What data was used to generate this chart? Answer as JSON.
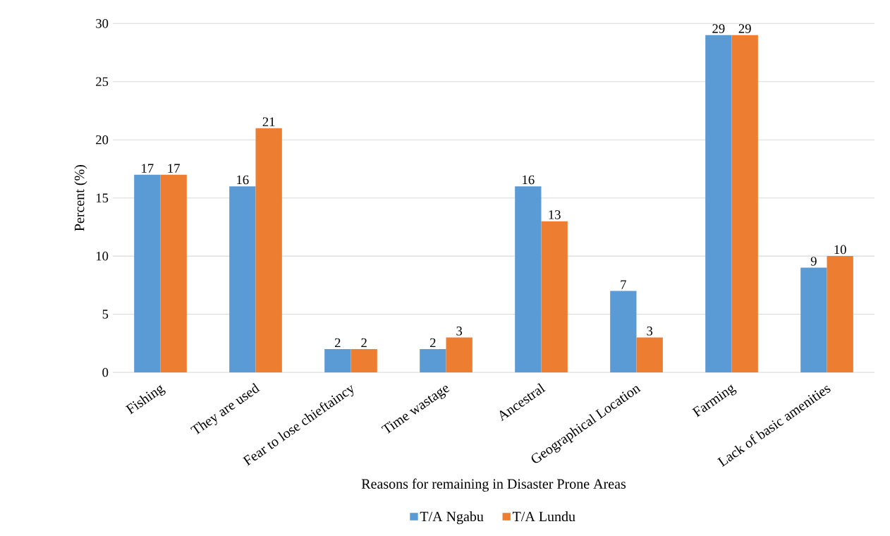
{
  "chart_data": {
    "type": "bar",
    "categories": [
      "Fishing",
      "They are used",
      "Fear to lose chieftaincy",
      "Time wastage",
      "Ancestral",
      "Geographical Location",
      "Farming",
      "Lack of basic amenities"
    ],
    "series": [
      {
        "name": "T/A Ngabu",
        "color": "#5b9bd5",
        "values": [
          17,
          16,
          2,
          2,
          16,
          7,
          29,
          9
        ]
      },
      {
        "name": "T/A Lundu",
        "color": "#ed7d31",
        "values": [
          17,
          21,
          2,
          3,
          13,
          3,
          29,
          10
        ]
      }
    ],
    "xlabel": "Reasons for remaining in Disaster Prone Areas",
    "ylabel": "Percent (%)",
    "ylim": [
      0,
      30
    ],
    "yticks": [
      0,
      5,
      10,
      15,
      20,
      25,
      30
    ],
    "grid": "y",
    "legend": "bottom",
    "data_labels": true
  }
}
